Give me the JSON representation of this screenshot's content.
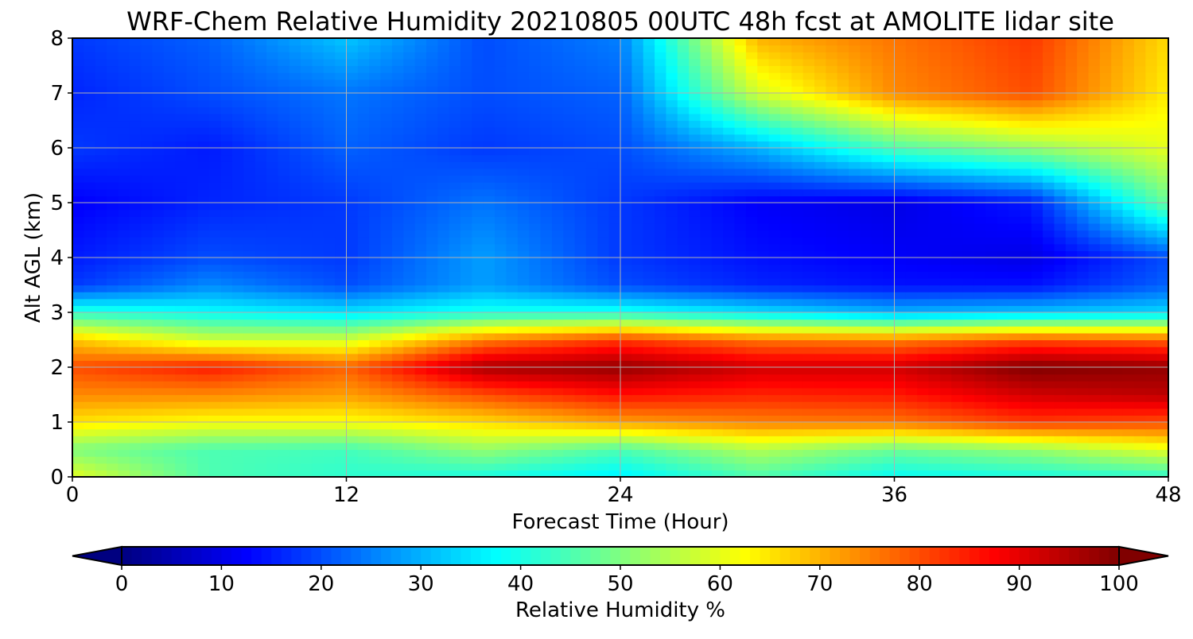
{
  "chart_data": {
    "type": "heatmap",
    "title": "WRF-Chem Relative Humidity 20210805 00UTC 48h fcst at AMOLITE lidar site",
    "xlabel": "Forecast Time (Hour)",
    "ylabel": "Alt AGL (km)",
    "xlim": [
      0,
      48
    ],
    "ylim": [
      0,
      8
    ],
    "xticks": [
      "0",
      "12",
      "24",
      "36",
      "48"
    ],
    "yticks": [
      "0",
      "1",
      "2",
      "3",
      "4",
      "5",
      "6",
      "7",
      "8"
    ],
    "grid": true,
    "colorscale": "jet",
    "colorbar": {
      "label": "Relative Humidity %",
      "min": 0,
      "max": 100,
      "ticks": [
        "0",
        "10",
        "20",
        "30",
        "40",
        "50",
        "60",
        "70",
        "80",
        "90",
        "100"
      ],
      "extend": "both"
    },
    "x_hours": [
      0,
      6,
      12,
      18,
      24,
      30,
      36,
      42,
      48
    ],
    "z_km": [
      0,
      0.5,
      1,
      1.5,
      2,
      2.5,
      3,
      3.5,
      4,
      5,
      6,
      7,
      8
    ],
    "values": [
      [
        60,
        45,
        42,
        40,
        36,
        45,
        38,
        40,
        42
      ],
      [
        50,
        45,
        44,
        52,
        45,
        55,
        48,
        52,
        60
      ],
      [
        65,
        62,
        62,
        66,
        72,
        75,
        76,
        82,
        80
      ],
      [
        74,
        74,
        72,
        80,
        86,
        84,
        85,
        92,
        94
      ],
      [
        80,
        85,
        78,
        96,
        98,
        92,
        92,
        100,
        98
      ],
      [
        68,
        58,
        58,
        75,
        82,
        76,
        75,
        80,
        78
      ],
      [
        42,
        38,
        35,
        40,
        40,
        35,
        30,
        32,
        34
      ],
      [
        18,
        26,
        20,
        28,
        20,
        16,
        14,
        14,
        22
      ],
      [
        15,
        20,
        18,
        28,
        18,
        14,
        12,
        10,
        20
      ],
      [
        12,
        16,
        18,
        24,
        18,
        12,
        10,
        15,
        48
      ],
      [
        18,
        15,
        22,
        18,
        20,
        30,
        45,
        52,
        60
      ],
      [
        16,
        20,
        24,
        20,
        22,
        58,
        74,
        80,
        64
      ],
      [
        18,
        22,
        32,
        20,
        25,
        70,
        76,
        82,
        66
      ]
    ]
  }
}
